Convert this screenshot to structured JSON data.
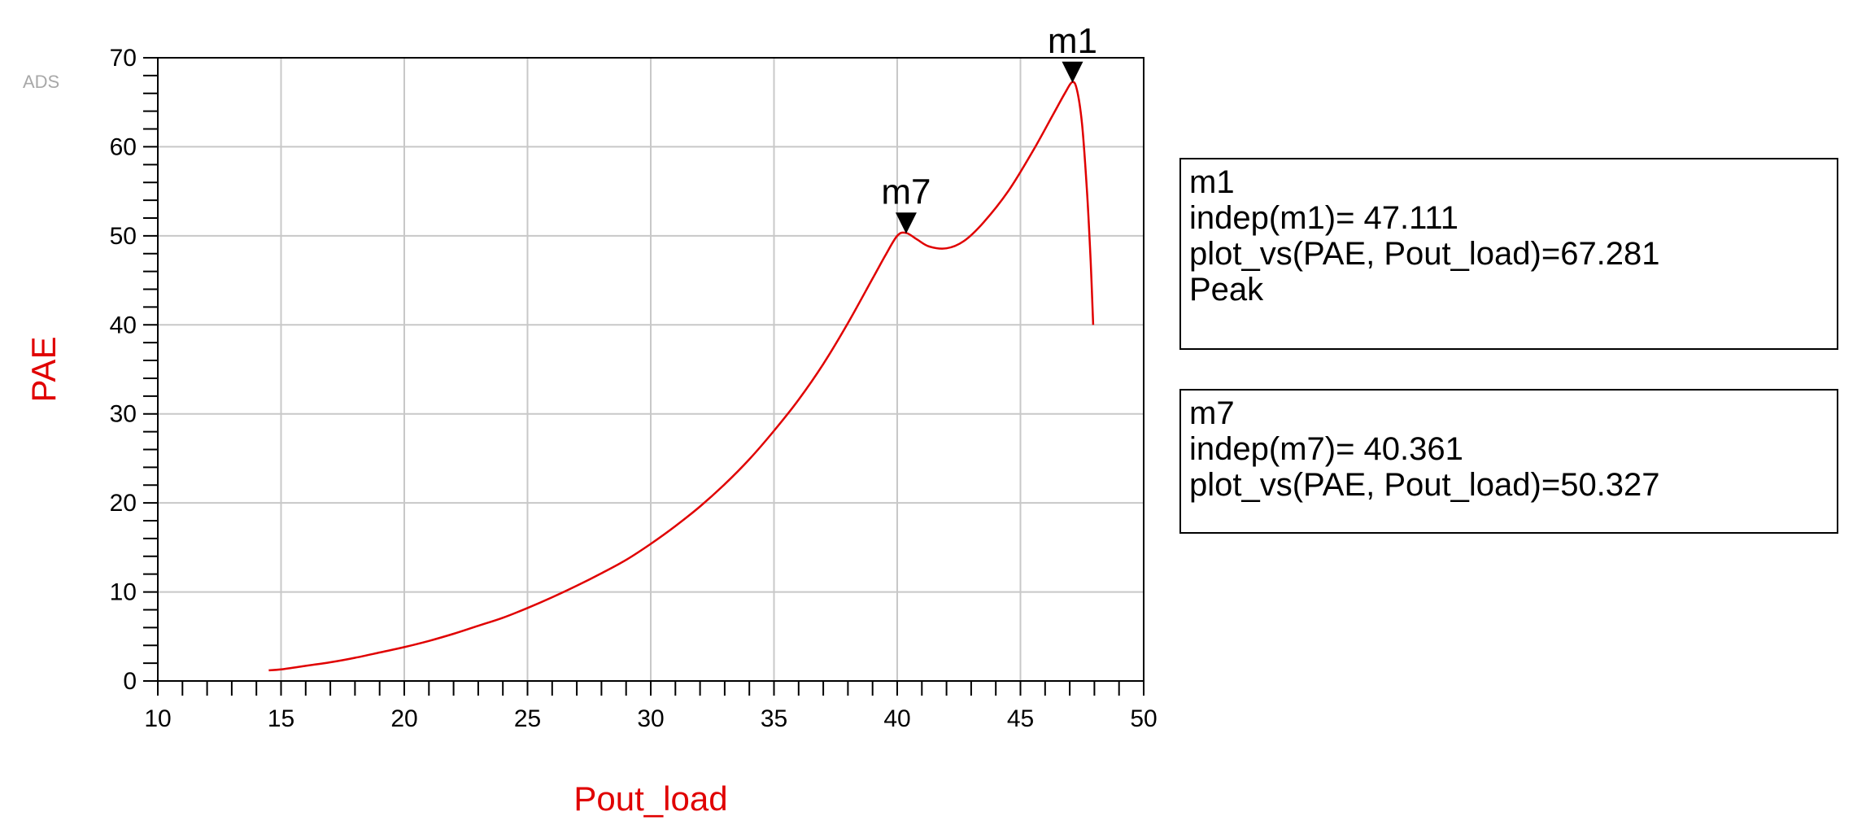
{
  "brand": "ADS",
  "chart_data": {
    "type": "line",
    "xlabel": "Pout_load",
    "ylabel": "PAE",
    "xlim": [
      10,
      50
    ],
    "ylim": [
      0,
      70
    ],
    "x_ticks": [
      10,
      15,
      20,
      25,
      30,
      35,
      40,
      45,
      50
    ],
    "y_ticks": [
      0,
      10,
      20,
      30,
      40,
      50,
      60,
      70
    ],
    "grid": true,
    "series_color": "#e00000",
    "series": [
      {
        "x": [
          14.5,
          15,
          16,
          17,
          18,
          19,
          20,
          21,
          22,
          23,
          24,
          25,
          26,
          27,
          28,
          29,
          30,
          31,
          32,
          33,
          34,
          35,
          36,
          37,
          38,
          39,
          39.5,
          40,
          40.361,
          40.8,
          41.3,
          42,
          42.7,
          43.5,
          44.5,
          45.5,
          46.3,
          46.8,
          47.111,
          47.3,
          47.5,
          47.7,
          47.85,
          47.95
        ],
        "values": [
          1.2,
          1.3,
          1.7,
          2.1,
          2.6,
          3.2,
          3.8,
          4.5,
          5.3,
          6.2,
          7.1,
          8.2,
          9.4,
          10.7,
          12.1,
          13.6,
          15.4,
          17.4,
          19.6,
          22.1,
          24.9,
          28.1,
          31.6,
          35.6,
          40.2,
          45.2,
          47.7,
          50.0,
          50.327,
          49.6,
          48.8,
          48.6,
          49.4,
          51.5,
          55.0,
          59.5,
          63.5,
          66.0,
          67.281,
          66.3,
          62.5,
          55.0,
          47.0,
          40.0
        ]
      }
    ],
    "markers": [
      {
        "name": "m1",
        "x": 47.111,
        "y": 67.281
      },
      {
        "name": "m7",
        "x": 40.361,
        "y": 50.327
      }
    ]
  },
  "readouts": [
    {
      "lines": [
        "m1",
        "indep(m1)= 47.111",
        "plot_vs(PAE, Pout_load)=67.281",
        "Peak"
      ]
    },
    {
      "lines": [
        "m7",
        "indep(m7)= 40.361",
        "plot_vs(PAE, Pout_load)=50.327"
      ]
    }
  ]
}
